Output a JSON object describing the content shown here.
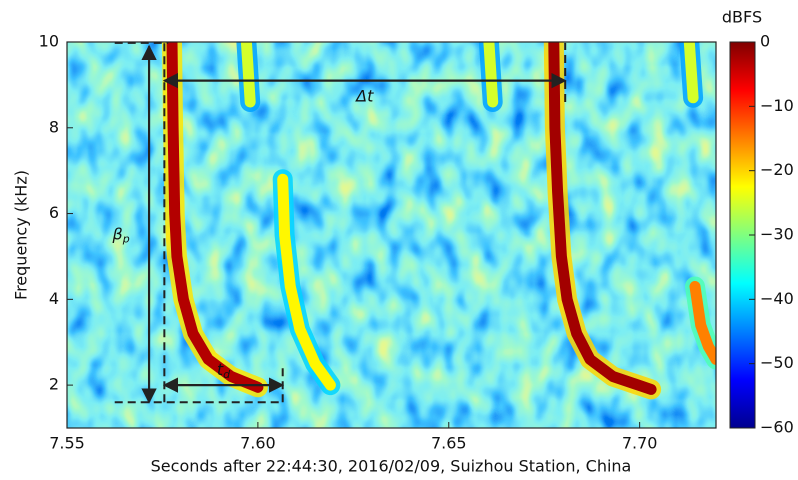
{
  "chart_data": {
    "type": "spectrogram",
    "xlabel": "Seconds after 22:44:30, 2016/02/09, Suizhou Station, China",
    "ylabel": "Frequency (kHz)",
    "xlim": [
      7.55,
      7.72
    ],
    "xticks": [
      7.55,
      {
        "value": 7.6,
        "label": "7.60"
      },
      7.65,
      {
        "value": 7.7,
        "label": "7.70"
      }
    ],
    "ylim": [
      1,
      10
    ],
    "yticks": [
      2,
      4,
      6,
      8,
      10
    ],
    "colorbar": {
      "label": "dBFS",
      "clim": [
        -60,
        0
      ],
      "colormap": "jet",
      "ticks": [
        0,
        {
          "value": -10,
          "label": "−10"
        },
        {
          "value": -20,
          "label": "−20"
        },
        {
          "value": -30,
          "label": "−30"
        },
        {
          "value": -40,
          "label": "−40"
        },
        {
          "value": -50,
          "label": "−50"
        },
        {
          "value": -60,
          "label": "−60"
        }
      ]
    },
    "series": [
      {
        "level": -3,
        "x": [
          7.5775,
          7.5778,
          7.5782,
          7.5788,
          7.5805,
          7.583,
          7.587,
          7.593,
          7.6
        ],
        "values": [
          10,
          8,
          6,
          5,
          4,
          3.2,
          2.6,
          2.2,
          1.95
        ]
      },
      {
        "level": -2,
        "x": [
          7.6775,
          7.6778,
          7.6785,
          7.6795,
          7.681,
          7.6835,
          7.687,
          7.693,
          7.703
        ],
        "values": [
          10,
          8,
          6.5,
          5,
          4,
          3.2,
          2.6,
          2.2,
          1.9
        ]
      },
      {
        "level": -22,
        "x": [
          7.6065,
          7.607,
          7.6085,
          7.611,
          7.615,
          7.619
        ],
        "values": [
          6.8,
          5.5,
          4.3,
          3.3,
          2.5,
          2.0
        ]
      },
      {
        "level": -15,
        "x": [
          7.7145,
          7.716,
          7.718,
          7.72
        ],
        "values": [
          4.3,
          3.4,
          2.9,
          2.6
        ]
      },
      {
        "level": -25,
        "x": [
          7.597,
          7.598
        ],
        "values": [
          10,
          8.6
        ]
      },
      {
        "level": -25,
        "x": [
          7.6605,
          7.6615
        ],
        "values": [
          10,
          8.6
        ]
      },
      {
        "level": -25,
        "x": [
          7.713,
          7.714
        ],
        "values": [
          10,
          8.7
        ]
      }
    ],
    "annotations": [
      {
        "text": "Δt",
        "x": [
          7.5755,
          7.6805
        ],
        "y": [
          9.1,
          9.1
        ]
      },
      {
        "text": "β",
        "sub": "p",
        "x": [
          7.5715,
          7.5715
        ],
        "y": [
          1.6,
          9.9
        ]
      },
      {
        "text": "t",
        "sub": "d",
        "x": [
          7.5755,
          7.6065
        ],
        "y": [
          2.0,
          2.0
        ]
      }
    ],
    "guides": [
      {
        "x": [
          7.5625,
          7.5765
        ],
        "y": [
          9.98,
          9.98
        ]
      },
      {
        "x": [
          7.5625,
          7.6065
        ],
        "y": [
          1.6,
          1.6
        ]
      },
      {
        "x": [
          7.5755,
          7.5755
        ],
        "y": [
          1.6,
          9.98
        ]
      },
      {
        "x": [
          7.6805,
          7.6805
        ],
        "y": [
          8.6,
          9.98
        ]
      },
      {
        "x": [
          7.6065,
          7.6065
        ],
        "y": [
          1.6,
          2.4
        ]
      }
    ]
  }
}
